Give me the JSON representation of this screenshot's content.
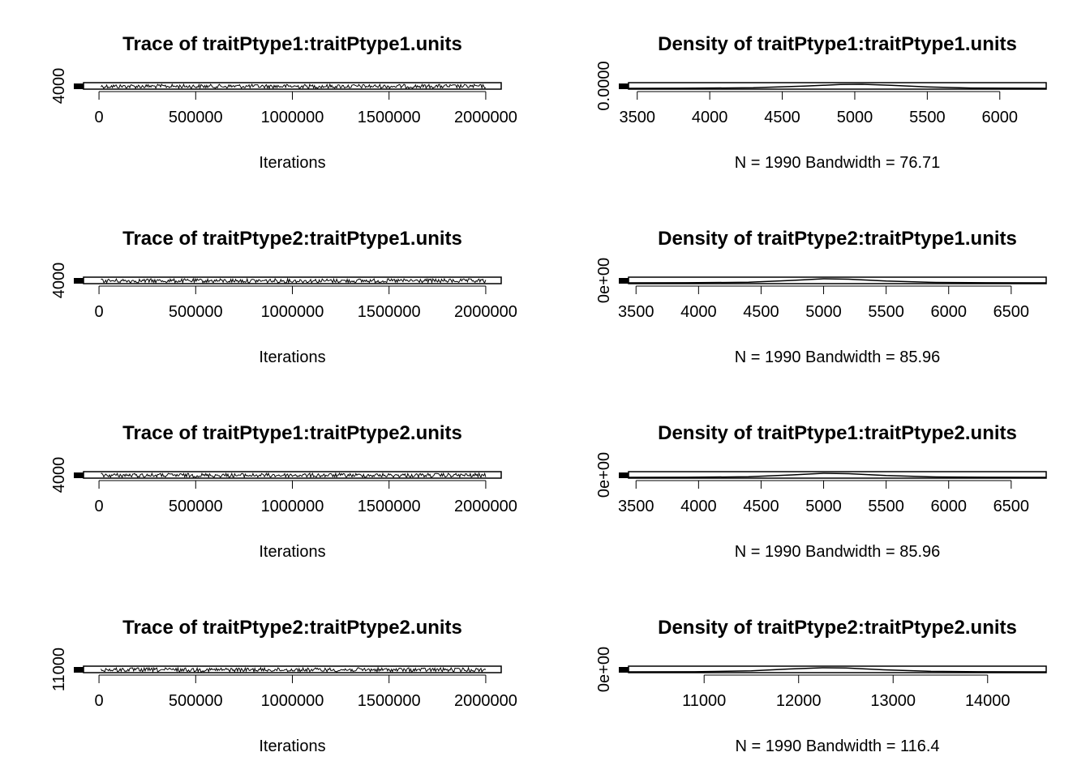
{
  "chart_data": [
    {
      "type": "line",
      "title": "Trace of traitPtype1:traitPtype1.units",
      "xlabel": "Iterations",
      "ylabel": "",
      "xlim": [
        -80000,
        2080000
      ],
      "x_ticks": [
        0,
        500000,
        1000000,
        1500000,
        2000000
      ],
      "x_tick_labels": [
        "0",
        "500000",
        "1000000",
        "1500000",
        "2000000"
      ],
      "y_ticks": [
        4000
      ],
      "y_tick_labels": [
        "4000"
      ],
      "series": [
        {
          "x_start": 10000,
          "x_end": 2000000,
          "n": 1990,
          "center": 5000,
          "spread": 500
        }
      ]
    },
    {
      "type": "line",
      "title": "Density of traitPtype1:traitPtype1.units",
      "xlabel": "N = 1990   Bandwidth = 76.71",
      "ylabel": "",
      "xlim": [
        3440,
        6320
      ],
      "x_ticks": [
        3500,
        4000,
        4500,
        5000,
        5500,
        6000
      ],
      "x_tick_labels": [
        "3500",
        "4000",
        "4500",
        "5000",
        "5500",
        "6000"
      ],
      "y_ticks": [
        0
      ],
      "y_tick_labels": [
        "0.0000"
      ],
      "series": [
        {
          "x": [
            3440,
            3800,
            4300,
            4650,
            4900,
            5050,
            5250,
            5500,
            5800,
            6320
          ],
          "y": [
            0.0,
            0.02,
            0.15,
            0.55,
            0.95,
            1.0,
            0.75,
            0.35,
            0.08,
            0.0
          ]
        }
      ]
    },
    {
      "type": "line",
      "title": "Trace of traitPtype2:traitPtype1.units",
      "xlabel": "Iterations",
      "ylabel": "",
      "xlim": [
        -80000,
        2080000
      ],
      "x_ticks": [
        0,
        500000,
        1000000,
        1500000,
        2000000
      ],
      "x_tick_labels": [
        "0",
        "500000",
        "1000000",
        "1500000",
        "2000000"
      ],
      "y_ticks": [
        4000
      ],
      "y_tick_labels": [
        "4000"
      ],
      "series": [
        {
          "x_start": 10000,
          "x_end": 2000000,
          "n": 1990,
          "center": 5000,
          "spread": 550
        }
      ]
    },
    {
      "type": "line",
      "title": "Density of traitPtype2:traitPtype1.units",
      "xlabel": "N = 1990   Bandwidth = 85.96",
      "ylabel": "",
      "xlim": [
        3440,
        6780
      ],
      "x_ticks": [
        3500,
        4000,
        4500,
        5000,
        5500,
        6000,
        6500
      ],
      "x_tick_labels": [
        "3500",
        "4000",
        "4500",
        "5000",
        "5500",
        "6000",
        "6500"
      ],
      "y_ticks": [
        0
      ],
      "y_tick_labels": [
        "0e+00"
      ],
      "series": [
        {
          "x": [
            3440,
            3900,
            4400,
            4750,
            5000,
            5200,
            5500,
            5900,
            6300,
            6780
          ],
          "y": [
            0.0,
            0.02,
            0.15,
            0.6,
            1.0,
            0.9,
            0.45,
            0.1,
            0.02,
            0.0
          ]
        }
      ]
    },
    {
      "type": "line",
      "title": "Trace of traitPtype1:traitPtype2.units",
      "xlabel": "Iterations",
      "ylabel": "",
      "xlim": [
        -80000,
        2080000
      ],
      "x_ticks": [
        0,
        500000,
        1000000,
        1500000,
        2000000
      ],
      "x_tick_labels": [
        "0",
        "500000",
        "1000000",
        "1500000",
        "2000000"
      ],
      "y_ticks": [
        4000
      ],
      "y_tick_labels": [
        "4000"
      ],
      "series": [
        {
          "x_start": 10000,
          "x_end": 2000000,
          "n": 1990,
          "center": 5000,
          "spread": 550
        }
      ]
    },
    {
      "type": "line",
      "title": "Density of traitPtype1:traitPtype2.units",
      "xlabel": "N = 1990   Bandwidth = 85.96",
      "ylabel": "",
      "xlim": [
        3440,
        6780
      ],
      "x_ticks": [
        3500,
        4000,
        4500,
        5000,
        5500,
        6000,
        6500
      ],
      "x_tick_labels": [
        "3500",
        "4000",
        "4500",
        "5000",
        "5500",
        "6000",
        "6500"
      ],
      "y_ticks": [
        0
      ],
      "y_tick_labels": [
        "0e+00"
      ],
      "series": [
        {
          "x": [
            3440,
            3900,
            4400,
            4750,
            5000,
            5200,
            5500,
            5900,
            6300,
            6780
          ],
          "y": [
            0.0,
            0.02,
            0.15,
            0.6,
            1.0,
            0.9,
            0.45,
            0.1,
            0.02,
            0.0
          ]
        }
      ]
    },
    {
      "type": "line",
      "title": "Trace of traitPtype2:traitPtype2.units",
      "xlabel": "Iterations",
      "ylabel": "",
      "xlim": [
        -80000,
        2080000
      ],
      "x_ticks": [
        0,
        500000,
        1000000,
        1500000,
        2000000
      ],
      "x_tick_labels": [
        "0",
        "500000",
        "1000000",
        "1500000",
        "2000000"
      ],
      "y_ticks": [
        11000
      ],
      "y_tick_labels": [
        "11000"
      ],
      "series": [
        {
          "x_start": 10000,
          "x_end": 2000000,
          "n": 1990,
          "center": 12300,
          "spread": 700
        }
      ]
    },
    {
      "type": "line",
      "title": "Density of traitPtype2:traitPtype2.units",
      "xlabel": "N = 1990   Bandwidth = 116.4",
      "ylabel": "",
      "xlim": [
        10200,
        14620
      ],
      "x_ticks": [
        11000,
        12000,
        13000,
        14000
      ],
      "x_tick_labels": [
        "11000",
        "12000",
        "13000",
        "14000"
      ],
      "y_ticks": [
        0
      ],
      "y_tick_labels": [
        "0e+00"
      ],
      "series": [
        {
          "x": [
            10200,
            10900,
            11500,
            11900,
            12250,
            12500,
            12900,
            13400,
            13900,
            14620
          ],
          "y": [
            0.0,
            0.03,
            0.25,
            0.7,
            1.0,
            0.95,
            0.5,
            0.12,
            0.02,
            0.0
          ]
        }
      ]
    }
  ]
}
